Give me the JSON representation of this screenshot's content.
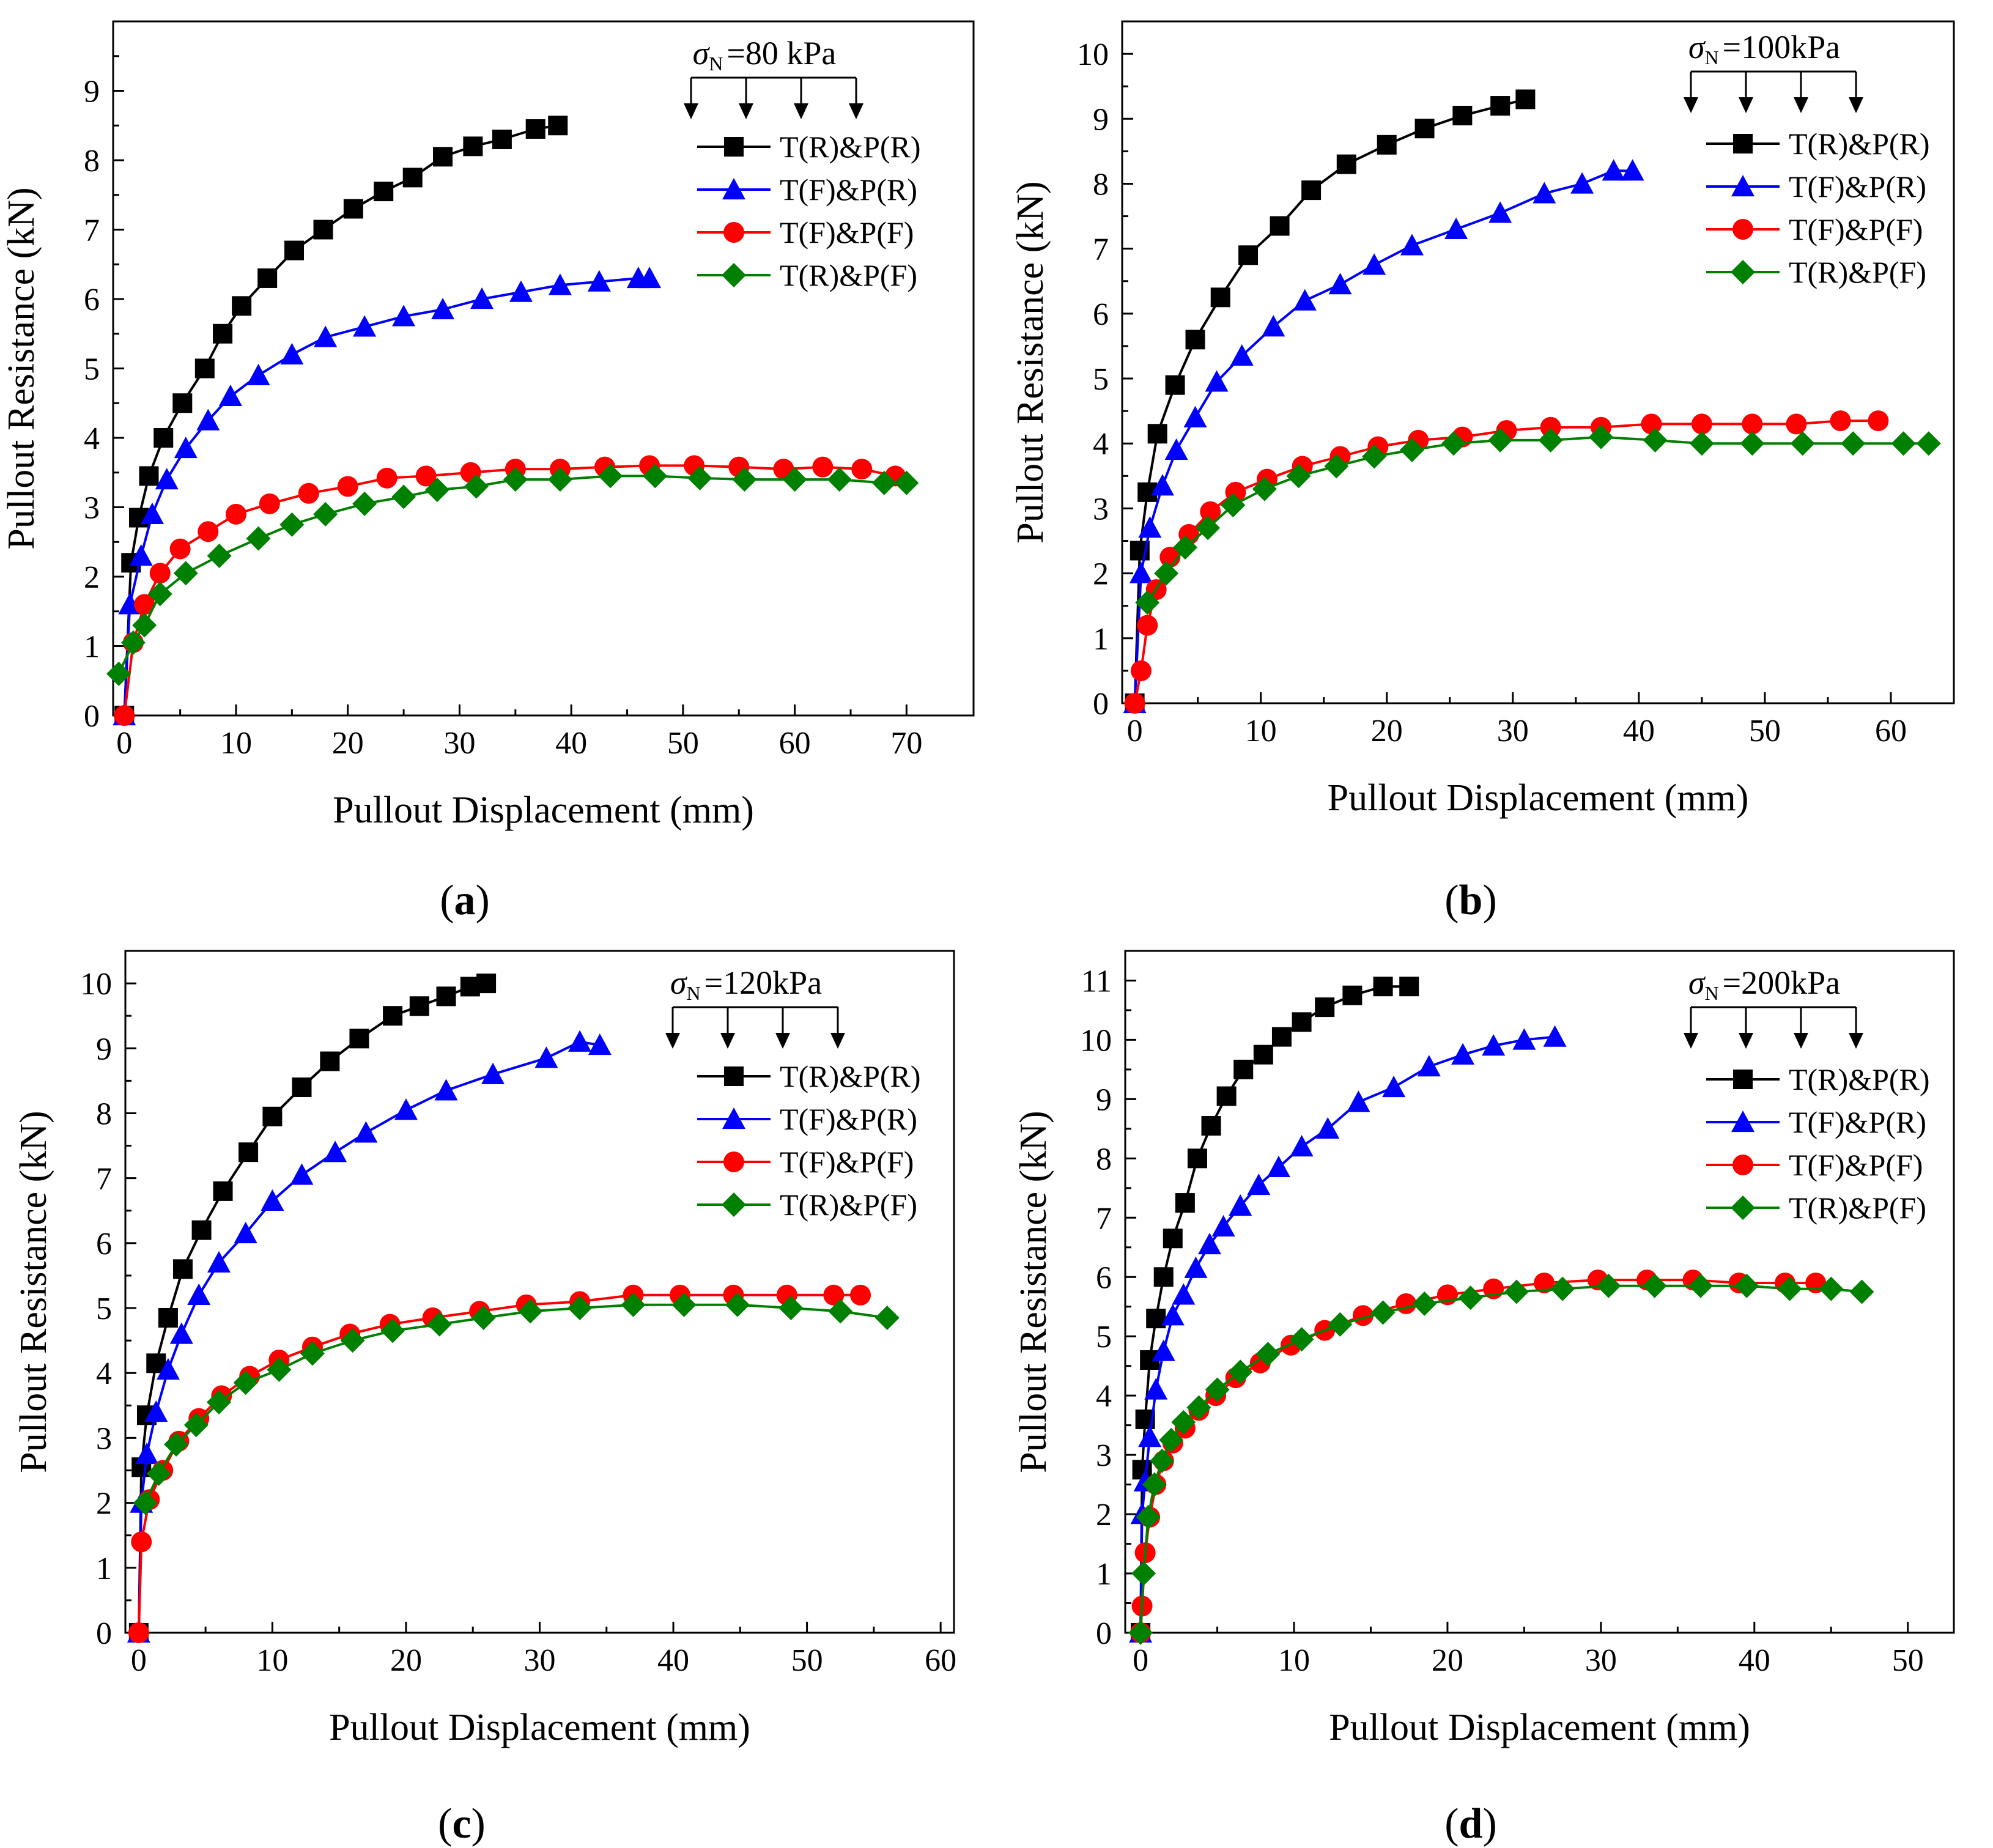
{
  "series_styles": [
    {
      "name": "T(R)&P(R)",
      "color": "#000000",
      "marker": "square"
    },
    {
      "name": "T(F)&P(R)",
      "color": "#0000ff",
      "marker": "triangle"
    },
    {
      "name": "T(F)&P(F)",
      "color": "#ff0000",
      "marker": "circle"
    },
    {
      "name": "T(R)&P(F)",
      "color": "#008000",
      "marker": "diamond"
    }
  ],
  "chart_data": [
    {
      "type": "line",
      "panel_label": "(a)",
      "label_letter": "a",
      "sigma_value": "=80 kPa",
      "xlabel": "Pullout Displacement (mm)",
      "ylabel": "Pullout Resistance (kN)",
      "xlim": [
        -1,
        76
      ],
      "ylim": [
        0,
        10
      ],
      "xticks": [
        0,
        10,
        20,
        30,
        40,
        50,
        60,
        70
      ],
      "yticks": [
        0,
        1,
        2,
        3,
        4,
        5,
        6,
        7,
        8,
        9
      ],
      "series": [
        {
          "name": "T(R)&P(R)",
          "x": [
            0,
            0.6,
            1.3,
            2.2,
            3.5,
            5.2,
            7.2,
            8.8,
            10.5,
            12.8,
            15.2,
            17.8,
            20.5,
            23.2,
            25.8,
            28.5,
            31.2,
            33.8,
            36.8,
            38.8
          ],
          "y": [
            0,
            2.2,
            2.85,
            3.45,
            4.0,
            4.5,
            5.0,
            5.5,
            5.9,
            6.3,
            6.7,
            7.0,
            7.3,
            7.55,
            7.75,
            8.05,
            8.2,
            8.3,
            8.45,
            8.5
          ]
        },
        {
          "name": "T(F)&P(R)",
          "x": [
            0,
            0.5,
            1.5,
            2.5,
            3.8,
            5.5,
            7.5,
            9.5,
            12,
            15,
            18,
            21.5,
            25,
            28.5,
            32,
            35.5,
            39,
            42.5,
            46,
            47
          ],
          "y": [
            0,
            1.6,
            2.3,
            2.9,
            3.4,
            3.85,
            4.25,
            4.6,
            4.9,
            5.2,
            5.45,
            5.6,
            5.75,
            5.85,
            6.0,
            6.1,
            6.2,
            6.25,
            6.3,
            6.3
          ]
        },
        {
          "name": "T(F)&P(F)",
          "x": [
            0,
            0.8,
            1.8,
            3.2,
            5,
            7.5,
            10,
            13,
            16.5,
            20,
            23.5,
            27,
            31,
            35,
            39,
            43,
            47,
            51,
            55,
            59,
            62.5,
            66,
            69
          ],
          "y": [
            0,
            1.05,
            1.6,
            2.05,
            2.4,
            2.65,
            2.9,
            3.05,
            3.2,
            3.3,
            3.42,
            3.45,
            3.5,
            3.55,
            3.55,
            3.58,
            3.6,
            3.6,
            3.58,
            3.55,
            3.58,
            3.55,
            3.45
          ]
        },
        {
          "name": "T(R)&P(F)",
          "x": [
            -0.5,
            0.8,
            1.8,
            3.2,
            5.5,
            8.5,
            12,
            15,
            18,
            21.5,
            25,
            28,
            31.5,
            35,
            39,
            43.5,
            47.5,
            51.5,
            55.5,
            60,
            64,
            68,
            70
          ],
          "y": [
            0.6,
            1.05,
            1.3,
            1.75,
            2.05,
            2.3,
            2.55,
            2.75,
            2.9,
            3.05,
            3.15,
            3.25,
            3.3,
            3.4,
            3.4,
            3.45,
            3.45,
            3.42,
            3.4,
            3.4,
            3.4,
            3.35,
            3.35
          ]
        }
      ]
    },
    {
      "type": "line",
      "panel_label": "(b)",
      "label_letter": "b",
      "sigma_value": "=100kPa",
      "xlabel": "Pullout Displacement (mm)",
      "ylabel": "Pullout Resistance (kN)",
      "xlim": [
        -1,
        65
      ],
      "ylim": [
        0,
        10.5
      ],
      "xticks": [
        0,
        10,
        20,
        30,
        40,
        50,
        60
      ],
      "yticks": [
        0,
        1,
        2,
        3,
        4,
        5,
        6,
        7,
        8,
        9,
        10
      ],
      "series": [
        {
          "name": "T(R)&P(R)",
          "x": [
            0,
            0.4,
            1.0,
            1.8,
            3.2,
            4.8,
            6.8,
            9,
            11.5,
            14,
            16.8,
            20,
            23,
            26,
            29,
            31
          ],
          "y": [
            0,
            2.35,
            3.25,
            4.15,
            4.9,
            5.6,
            6.25,
            6.9,
            7.35,
            7.9,
            8.3,
            8.6,
            8.85,
            9.05,
            9.2,
            9.3
          ]
        },
        {
          "name": "T(F)&P(R)",
          "x": [
            0,
            0.5,
            1.2,
            2.2,
            3.3,
            4.8,
            6.5,
            8.5,
            11,
            13.5,
            16.3,
            19,
            22,
            25.5,
            29,
            32.5,
            35.5,
            38,
            39.5
          ],
          "y": [
            0,
            2.0,
            2.7,
            3.35,
            3.9,
            4.4,
            4.95,
            5.35,
            5.8,
            6.2,
            6.45,
            6.75,
            7.05,
            7.3,
            7.55,
            7.85,
            8.0,
            8.2,
            8.2
          ]
        },
        {
          "name": "T(F)&P(F)",
          "x": [
            0,
            0.5,
            1.0,
            1.7,
            2.8,
            4.3,
            6,
            8,
            10.5,
            13.3,
            16.3,
            19.3,
            22.5,
            26,
            29.5,
            33,
            37,
            41,
            45,
            49,
            52.5,
            56,
            59
          ],
          "y": [
            0,
            0.5,
            1.2,
            1.75,
            2.25,
            2.6,
            2.95,
            3.25,
            3.45,
            3.65,
            3.8,
            3.95,
            4.05,
            4.1,
            4.2,
            4.25,
            4.25,
            4.3,
            4.3,
            4.3,
            4.3,
            4.35,
            4.35
          ]
        },
        {
          "name": "T(R)&P(F)",
          "x": [
            1,
            2.5,
            4,
            5.8,
            7.8,
            10.3,
            13,
            16,
            19,
            22,
            25.3,
            29,
            33,
            37,
            41.3,
            45,
            49,
            53,
            57,
            61,
            63
          ],
          "y": [
            1.55,
            2.0,
            2.4,
            2.7,
            3.05,
            3.3,
            3.5,
            3.65,
            3.8,
            3.9,
            4.0,
            4.05,
            4.05,
            4.1,
            4.05,
            4.0,
            4.0,
            4.0,
            4.0,
            4.0,
            4.0
          ]
        }
      ]
    },
    {
      "type": "line",
      "panel_label": "(c)",
      "label_letter": "c",
      "sigma_value": "=120kPa",
      "xlabel": "Pullout Displacement (mm)",
      "ylabel": "Pullout Resistance (kN)",
      "xlim": [
        -1,
        61
      ],
      "ylim": [
        0,
        10.5
      ],
      "xticks": [
        0,
        10,
        20,
        30,
        40,
        50,
        60
      ],
      "yticks": [
        0,
        1,
        2,
        3,
        4,
        5,
        6,
        7,
        8,
        9,
        10
      ],
      "series": [
        {
          "name": "T(R)&P(R)",
          "x": [
            0,
            0.2,
            0.6,
            1.3,
            2.2,
            3.3,
            4.7,
            6.3,
            8.2,
            10,
            12.2,
            14.3,
            16.5,
            19,
            21,
            23,
            24.8,
            26
          ],
          "y": [
            0,
            2.55,
            3.35,
            4.15,
            4.85,
            5.6,
            6.2,
            6.8,
            7.4,
            7.95,
            8.4,
            8.8,
            9.15,
            9.5,
            9.65,
            9.8,
            9.95,
            10.0
          ]
        },
        {
          "name": "T(F)&P(R)",
          "x": [
            0,
            0.2,
            0.6,
            1.3,
            2.2,
            3.2,
            4.5,
            6,
            8,
            10,
            12.2,
            14.7,
            17,
            20,
            23,
            26.5,
            30.5,
            33,
            34.5
          ],
          "y": [
            0,
            2.0,
            2.75,
            3.4,
            4.05,
            4.6,
            5.2,
            5.7,
            6.15,
            6.65,
            7.05,
            7.4,
            7.7,
            8.05,
            8.35,
            8.6,
            8.85,
            9.1,
            9.05
          ]
        },
        {
          "name": "T(F)&P(F)",
          "x": [
            0,
            0.2,
            0.8,
            1.8,
            3,
            4.5,
            6.2,
            8.3,
            10.5,
            13,
            15.8,
            18.8,
            22,
            25.5,
            29,
            33,
            37,
            40.5,
            44.5,
            48.5,
            52,
            54
          ],
          "y": [
            0,
            1.4,
            2.05,
            2.5,
            2.95,
            3.3,
            3.65,
            3.95,
            4.2,
            4.4,
            4.6,
            4.75,
            4.85,
            4.95,
            5.05,
            5.1,
            5.2,
            5.2,
            5.2,
            5.2,
            5.2,
            5.2
          ]
        },
        {
          "name": "T(R)&P(F)",
          "x": [
            0.5,
            1.5,
            2.8,
            4.3,
            6,
            8,
            10.5,
            13,
            16,
            19,
            22.5,
            25.8,
            29.3,
            33,
            37,
            40.8,
            44.8,
            48.8,
            52.5,
            56
          ],
          "y": [
            2.0,
            2.45,
            2.9,
            3.2,
            3.55,
            3.85,
            4.05,
            4.3,
            4.5,
            4.65,
            4.75,
            4.85,
            4.95,
            5.0,
            5.05,
            5.05,
            5.05,
            5.0,
            4.95,
            4.85
          ]
        }
      ]
    },
    {
      "type": "line",
      "panel_label": "(d)",
      "label_letter": "d",
      "sigma_value": "=200kPa",
      "xlabel": "Pullout Displacement (mm)",
      "ylabel": "Pullout Resistance (kN)",
      "xlim": [
        -1,
        53
      ],
      "ylim": [
        0,
        11.5
      ],
      "xticks": [
        0,
        10,
        20,
        30,
        40,
        50
      ],
      "yticks": [
        0,
        1,
        2,
        3,
        4,
        5,
        6,
        7,
        8,
        9,
        10,
        11
      ],
      "series": [
        {
          "name": "T(R)&P(R)",
          "x": [
            0,
            0.1,
            0.3,
            0.6,
            1.0,
            1.5,
            2.1,
            2.9,
            3.7,
            4.6,
            5.6,
            6.7,
            8,
            9.2,
            10.5,
            12,
            13.8,
            15.8,
            17.5
          ],
          "y": [
            0,
            2.75,
            3.6,
            4.6,
            5.3,
            6.0,
            6.65,
            7.25,
            8.0,
            8.55,
            9.05,
            9.5,
            9.75,
            10.05,
            10.3,
            10.55,
            10.75,
            10.9,
            10.9
          ]
        },
        {
          "name": "T(F)&P(R)",
          "x": [
            0,
            0.1,
            0.3,
            0.6,
            1.0,
            1.5,
            2.1,
            2.8,
            3.6,
            4.5,
            5.4,
            6.5,
            7.7,
            9,
            10.5,
            12.2,
            14.2,
            16.5,
            18.8,
            21,
            23,
            25,
            27
          ],
          "y": [
            0,
            2.0,
            2.55,
            3.3,
            4.1,
            4.75,
            5.35,
            5.7,
            6.15,
            6.55,
            6.85,
            7.2,
            7.55,
            7.85,
            8.2,
            8.5,
            8.95,
            9.2,
            9.55,
            9.75,
            9.9,
            10.0,
            10.05
          ]
        },
        {
          "name": "T(F)&P(F)",
          "x": [
            0,
            0.1,
            0.3,
            0.6,
            1.0,
            1.5,
            2.1,
            2.9,
            3.8,
            4.9,
            6.2,
            7.8,
            9.8,
            12,
            14.5,
            17.3,
            20,
            23,
            26.3,
            29.8,
            33,
            36,
            39,
            42,
            44
          ],
          "y": [
            0,
            0.45,
            1.35,
            1.95,
            2.5,
            2.9,
            3.2,
            3.45,
            3.75,
            4.0,
            4.3,
            4.55,
            4.85,
            5.1,
            5.35,
            5.55,
            5.7,
            5.8,
            5.9,
            5.95,
            5.95,
            5.95,
            5.9,
            5.9,
            5.9
          ]
        },
        {
          "name": "T(R)&P(F)",
          "x": [
            0,
            0.2,
            0.5,
            0.9,
            1.4,
            2.0,
            2.8,
            3.8,
            5,
            6.5,
            8.3,
            10.5,
            13,
            15.8,
            18.5,
            21.5,
            24.5,
            27.5,
            30.5,
            33.5,
            36.5,
            39.5,
            42.3,
            45,
            47
          ],
          "y": [
            0,
            1.0,
            1.95,
            2.5,
            2.9,
            3.25,
            3.55,
            3.8,
            4.1,
            4.4,
            4.7,
            4.95,
            5.2,
            5.4,
            5.55,
            5.65,
            5.75,
            5.8,
            5.85,
            5.85,
            5.85,
            5.85,
            5.8,
            5.8,
            5.75
          ]
        }
      ]
    }
  ]
}
